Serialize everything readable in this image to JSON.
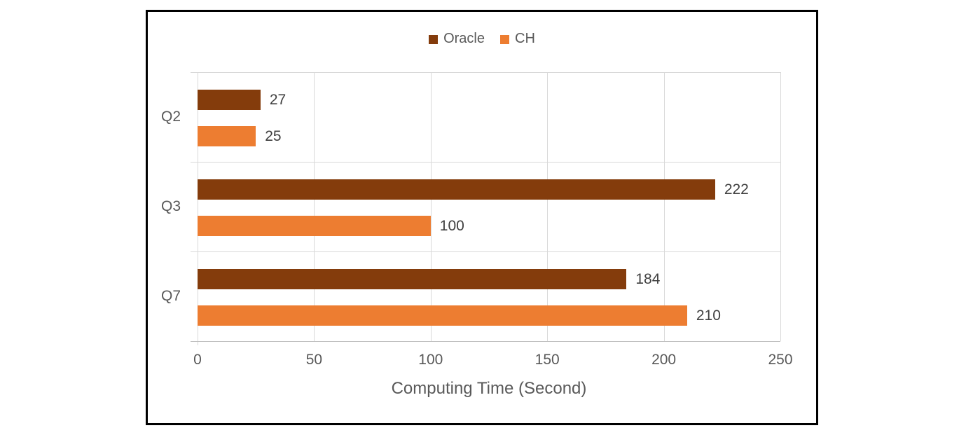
{
  "chart_data": {
    "type": "bar",
    "orientation": "horizontal",
    "categories": [
      "Q2",
      "Q3",
      "Q7"
    ],
    "series": [
      {
        "name": "Oracle",
        "color": "#843C0C",
        "values": [
          27,
          222,
          184
        ]
      },
      {
        "name": "CH",
        "color": "#ED7D31",
        "values": [
          25,
          100,
          210
        ]
      }
    ],
    "data_labels_shown": true,
    "xlabel": "Computing Time (Second)",
    "xlim": [
      0,
      250
    ],
    "xticks": [
      0,
      50,
      100,
      150,
      200,
      250
    ],
    "grid": true,
    "legend_position": "top"
  },
  "colors": {
    "series_oracle": "#843C0C",
    "series_ch": "#ED7D31",
    "gridline": "#D9D9D9",
    "axis_line": "#BFBFBF",
    "tick_label_text": "#595959",
    "data_label_text": "#404040",
    "frame_border": "#000000",
    "background": "#FFFFFF"
  }
}
